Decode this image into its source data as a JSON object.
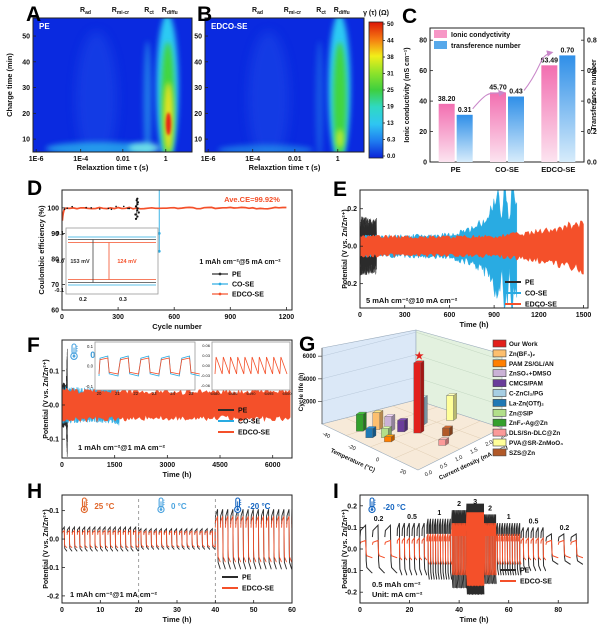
{
  "colors": {
    "pe": "#2b2b2b",
    "co_se": "#29abe2",
    "edco_se": "#f4502a",
    "arrow": "#c987c9",
    "heat_bg": "#0a2ae0",
    "pink_bar": "#f797c6",
    "blue_bar": "#57a8ea"
  },
  "panels": {
    "A": {
      "letter": "A"
    },
    "B": {
      "letter": "B"
    },
    "C": {
      "letter": "C"
    },
    "D": {
      "letter": "D"
    },
    "E": {
      "letter": "E"
    },
    "F": {
      "letter": "F"
    },
    "G": {
      "letter": "G"
    },
    "H": {
      "letter": "H"
    },
    "I": {
      "letter": "I"
    }
  },
  "chart_data": [
    {
      "id": "A",
      "type": "heatmap",
      "title": "PE",
      "profile": "strong",
      "xlabel": "Relaxztion time τ (s)",
      "ylabel": "Charge time (min)",
      "yticks": [
        10,
        20,
        30,
        40,
        50
      ],
      "ylim": [
        5,
        57
      ],
      "xticks": [
        {
          "label": "1E-6",
          "f": 0.02
        },
        {
          "label": "1E-4",
          "f": 0.3
        },
        {
          "label": "0.01",
          "f": 0.565
        },
        {
          "label": "1",
          "f": 0.835
        }
      ],
      "process_labels": [
        {
          "base": "R",
          "sub": "ad",
          "f": 0.33
        },
        {
          "base": "R",
          "sub": "mi-cr",
          "f": 0.55
        },
        {
          "base": "R",
          "sub": "ct",
          "f": 0.73
        },
        {
          "base": "R",
          "sub": "diffu",
          "f": 0.86
        }
      ]
    },
    {
      "id": "B",
      "type": "heatmap",
      "title": "EDCO-SE",
      "profile": "mild",
      "xlabel": "Relaxztion time τ (s)",
      "yticks": [
        10,
        20,
        30,
        40,
        50
      ],
      "ylim": [
        5,
        57
      ],
      "xticks": [
        {
          "label": "1E-6",
          "f": 0.02
        },
        {
          "label": "1E-4",
          "f": 0.3
        },
        {
          "label": "0.01",
          "f": 0.565
        },
        {
          "label": "1",
          "f": 0.835
        }
      ],
      "process_labels": [
        {
          "base": "R",
          "sub": "ad",
          "f": 0.33
        },
        {
          "base": "R",
          "sub": "mi-cr",
          "f": 0.55
        },
        {
          "base": "R",
          "sub": "ct",
          "f": 0.73
        },
        {
          "base": "R",
          "sub": "diffu",
          "f": 0.86
        }
      ],
      "colorbar": {
        "title": "γ (τ) (Ω)",
        "ticks": [
          "50",
          "44",
          "38",
          "31",
          "25",
          "19",
          "13",
          "6.3",
          "0.0"
        ]
      }
    },
    {
      "id": "C",
      "type": "grouped_bar",
      "categories": [
        "PE",
        "CO-SE",
        "EDCO-SE"
      ],
      "ylabel_left": "Ionic conductivity (mS cm⁻¹)",
      "ylabel_right": "Transference number",
      "yticks_left": [
        0,
        20,
        40,
        60,
        80
      ],
      "ylim_left": [
        0,
        88
      ],
      "yticks_right": [
        "0.0",
        "0.2",
        "0.4",
        "0.6",
        "0.8"
      ],
      "ylim_right": [
        0,
        0.88
      ],
      "series": [
        {
          "name": "Ionic condyctivity",
          "axis": "left",
          "values": [
            38.2,
            45.7,
            63.49
          ],
          "labels": [
            "38.20",
            "45.70",
            "63.49"
          ]
        },
        {
          "name": "transference number",
          "axis": "right",
          "values": [
            0.31,
            0.43,
            0.7
          ],
          "labels": [
            "0.31",
            "0.43",
            "0.70"
          ]
        }
      ]
    },
    {
      "id": "D",
      "type": "coulombic",
      "ylabel": "Coulombic efficiency (%)",
      "xlabel": "Cycle number",
      "yticks": [
        60,
        70,
        80,
        90,
        100
      ],
      "ylim": [
        60,
        107
      ],
      "xticks": [
        0,
        300,
        600,
        900,
        1200
      ],
      "xlim": [
        0,
        1230
      ],
      "annotation": "Ave.CE=99.92%",
      "average_ce_percent": 99.92,
      "condition": "1 mAh cm⁻²@5 mA cm⁻²",
      "legend": [
        {
          "label": "PE",
          "color": "pe"
        },
        {
          "label": "CO-SE",
          "color": "co_se"
        },
        {
          "label": "EDCO-SE",
          "color": "edco_se"
        }
      ],
      "pe_fail_cycle": 400,
      "co_se_fail_cycle": 520,
      "edco_se_cycles": 1200,
      "inset": {
        "xticks": [
          "0.2",
          "0.3"
        ],
        "yticks": [
          "0.1",
          "0.0",
          "-0.1"
        ],
        "pe_overpotential_label": "153 mV",
        "edco_overpotential_label": "124 mV"
      }
    },
    {
      "id": "E",
      "type": "envelope",
      "ylabel": "Potential (V vs. Zn/Zn²⁺)",
      "xlabel": "Time (h)",
      "yticks": [
        "0.2",
        "0.0",
        "-0.2"
      ],
      "ylim": [
        -0.33,
        0.3
      ],
      "xticks": [
        0,
        300,
        600,
        900,
        1200,
        1500
      ],
      "xlim": [
        0,
        1530
      ],
      "condition": "5 mAh cm⁻²@10 mA cm⁻²",
      "legend": [
        {
          "label": "PE",
          "color": "pe"
        },
        {
          "label": "CO-SE",
          "color": "co_se"
        },
        {
          "label": "EDCO-SE",
          "color": "edco_se"
        }
      ],
      "series": [
        {
          "name": "PE",
          "color": "pe",
          "envelope": [
            [
              0,
              0.03
            ],
            [
              5,
              0.13
            ],
            [
              100,
              0.12
            ],
            [
              110,
              0.13
            ],
            [
              112,
              0.02
            ]
          ]
        },
        {
          "name": "CO-SE",
          "color": "co_se",
          "envelope": [
            [
              0,
              0.05
            ],
            [
              300,
              0.052
            ],
            [
              600,
              0.06
            ],
            [
              750,
              0.09
            ],
            [
              850,
              0.14
            ],
            [
              900,
              0.22
            ],
            [
              930,
              0.28
            ],
            [
              950,
              0.12
            ],
            [
              970,
              0.3
            ],
            [
              990,
              0.26
            ],
            [
              1000,
              0.1
            ],
            [
              1020,
              0.3
            ],
            [
              1040,
              0.22
            ],
            [
              1052,
              0.28
            ]
          ]
        },
        {
          "name": "EDCO-SE",
          "color": "edco_se",
          "envelope": [
            [
              0,
              0.05
            ],
            [
              600,
              0.048
            ],
            [
              900,
              0.052
            ],
            [
              1100,
              0.065
            ],
            [
              1300,
              0.09
            ],
            [
              1500,
              0.13
            ]
          ]
        }
      ]
    },
    {
      "id": "F",
      "type": "envelope",
      "temp_label": "0 °C",
      "ylabel": "Potential (V vs. Zn/Zn²⁺)",
      "xlabel": "Time (h)",
      "yticks": [
        "0.1",
        "0.0",
        "-0.1"
      ],
      "ylim": [
        -0.155,
        0.19
      ],
      "xticks": [
        0,
        1500,
        3000,
        4500,
        6000
      ],
      "xlim": [
        0,
        6550
      ],
      "condition": "1 mAh cm⁻²@1 mA cm⁻²",
      "legend": [
        {
          "label": "PE",
          "color": "pe"
        },
        {
          "label": "CO-SE",
          "color": "co_se"
        },
        {
          "label": "EDCO-SE",
          "color": "edco_se"
        }
      ],
      "series": [
        {
          "name": "PE",
          "color": "pe",
          "envelope": [
            [
              0,
              0.04
            ],
            [
              30,
              0.055
            ],
            [
              120,
              0.05
            ],
            [
              150,
              0.14
            ],
            [
              158,
              0.05
            ]
          ]
        },
        {
          "name": "CO-SE",
          "color": "co_se",
          "envelope": [
            [
              0,
              0.045
            ],
            [
              800,
              0.042
            ],
            [
              1500,
              0.045
            ],
            [
              1630,
              0.05
            ]
          ]
        },
        {
          "name": "EDCO-SE",
          "color": "edco_se",
          "envelope": [
            [
              0,
              0.042
            ],
            [
              3000,
              0.037
            ],
            [
              6500,
              0.04
            ]
          ]
        }
      ],
      "insets": [
        {
          "xticks": [
            20,
            21,
            22,
            23,
            24,
            25
          ],
          "yticks": [
            "0.1",
            "0.0",
            "-0.1"
          ]
        },
        {
          "xticks": [
            6480,
            6485,
            6490,
            6495,
            6500
          ],
          "yticks": [
            "0.06",
            "0.03",
            "0.00",
            "-0.03",
            "-0.06"
          ]
        }
      ]
    },
    {
      "id": "G",
      "type": "bar3d",
      "zlabel": "Cycle life (h)",
      "xlabel3d": "Temperature (°C)",
      "ylabel3d": "Current density (mA cm⁻²)",
      "zticks": [
        2000,
        4000,
        6000
      ],
      "temp_ticks": [
        "-40",
        "-20",
        "0",
        "20"
      ],
      "cd_ticks": [
        "0.0",
        "0.5",
        "1.0",
        "1.5",
        "2.0",
        "2.5"
      ],
      "entries": [
        {
          "label": "Our Work",
          "color": "#e2201c",
          "star": true,
          "a": 0.45,
          "b": 0.48,
          "cycle_life_h": 6200
        },
        {
          "label": "Zn(BF₄)₂",
          "color": "#fdbf6f",
          "a": 0.7,
          "b": 0.28,
          "cycle_life_h": 1500
        },
        {
          "label": "PAM ZS/GL/AN",
          "color": "#ff7f00",
          "a": 0.48,
          "b": 0.18,
          "cycle_life_h": 450
        },
        {
          "label": "ZnSO₄+DMSO",
          "color": "#cab2d6",
          "a": 0.62,
          "b": 0.33,
          "cycle_life_h": 1300
        },
        {
          "label": "CMCS/PAM",
          "color": "#6a3d9a",
          "a": 0.55,
          "b": 0.4,
          "cycle_life_h": 1000
        },
        {
          "label": "C-ZnCl₂/PG",
          "color": "#a6cee3",
          "a": 0.55,
          "b": 0.62,
          "cycle_life_h": 2400
        },
        {
          "label": "La-Zn(OTf)₂",
          "color": "#1f78b4",
          "a": 0.62,
          "b": 0.12,
          "cycle_life_h": 800
        },
        {
          "label": "Zn@SIP",
          "color": "#b2df8a",
          "a": 0.55,
          "b": 0.22,
          "cycle_life_h": 800
        },
        {
          "label": "ZnF₂-Ag@Zn",
          "color": "#33a02c",
          "a": 0.75,
          "b": 0.15,
          "cycle_life_h": 1500
        },
        {
          "label": "DLS/Sn-DLC@Zn",
          "color": "#fb9a99",
          "a": 0.15,
          "b": 0.45,
          "cycle_life_h": 500
        },
        {
          "label": "PVA@SR-ZnMoO₄",
          "color": "#ffff99",
          "a": 0.45,
          "b": 0.85,
          "cycle_life_h": 2200
        },
        {
          "label": "SZS@Zn",
          "color": "#b15928",
          "a": 0.25,
          "b": 0.6,
          "cycle_life_h": 700
        }
      ]
    },
    {
      "id": "H",
      "type": "pulse",
      "ylabel": "Potential (V vs. Zn/Zn²⁺)",
      "xlabel": "Time (h)",
      "yticks": [
        "0.1",
        "0.0",
        "-0.1",
        "-0.2"
      ],
      "ylim": [
        -0.225,
        0.155
      ],
      "xticks": [
        0,
        10,
        20,
        30,
        40,
        50,
        60
      ],
      "xlim": [
        0,
        60
      ],
      "condition": "1 mAh cm⁻²@1 mA cm⁻²",
      "period_h": 1.33,
      "legend": [
        {
          "label": "PE",
          "color": "pe"
        },
        {
          "label": "EDCO-SE",
          "color": "edco_se"
        }
      ],
      "segments": [
        {
          "temp_label": "25 °C",
          "color": "#e0662a",
          "t0": 0,
          "t1": 20,
          "amp_pe": 0.042,
          "amp_edco": 0.03
        },
        {
          "temp_label": "0 °C",
          "color": "#4aa3df",
          "t0": 20,
          "t1": 40,
          "amp_pe": 0.036,
          "amp_edco": 0.028
        },
        {
          "temp_label": "-20 °C",
          "color": "#1565c0",
          "t0": 40,
          "t1": 60,
          "amp_pe": 0.105,
          "amp_edco": 0.08
        }
      ]
    },
    {
      "id": "I",
      "type": "rate",
      "temp_label": "-20 °C",
      "ylabel": "Potential (V vs. Zn/Zn²⁺)",
      "xlabel": "Time (h)",
      "yticks": [
        "0.2",
        "0.1",
        "0.0",
        "-0.1",
        "-0.2"
      ],
      "ylim": [
        -0.25,
        0.25
      ],
      "xticks": [
        0,
        20,
        40,
        60,
        80
      ],
      "xlim": [
        0,
        92
      ],
      "capacity_label": "0.5 mAh cm⁻²",
      "unit_label": "Unit: mA cm⁻²",
      "legend": [
        {
          "label": "PE",
          "color": "pe"
        },
        {
          "label": "EDCO-SE",
          "color": "edco_se"
        }
      ],
      "steps": [
        {
          "rate": "0.2",
          "t0": 0,
          "t1": 15,
          "half_h": 2.5,
          "amp_pe": 0.11,
          "amp_edco": 0.04
        },
        {
          "rate": "0.5",
          "t0": 15,
          "t1": 27,
          "half_h": 1.0,
          "amp_pe": 0.12,
          "amp_edco": 0.05
        },
        {
          "rate": "1",
          "t0": 27,
          "t1": 37,
          "half_h": 0.5,
          "amp_pe": 0.14,
          "amp_edco": 0.07
        },
        {
          "rate": "2",
          "t0": 37,
          "t1": 43,
          "half_h": 0.25,
          "amp_pe": 0.18,
          "amp_edco": 0.12
        },
        {
          "rate": "3",
          "t0": 43,
          "t1": 50,
          "half_h": 0.167,
          "amp_pe": 0.21,
          "amp_edco": 0.17
        },
        {
          "rate": "2",
          "t0": 50,
          "t1": 55,
          "half_h": 0.25,
          "amp_pe": 0.16,
          "amp_edco": 0.12
        },
        {
          "rate": "1",
          "t0": 55,
          "t1": 65,
          "half_h": 0.5,
          "amp_pe": 0.12,
          "amp_edco": 0.07
        },
        {
          "rate": "0.5",
          "t0": 65,
          "t1": 75,
          "half_h": 1.0,
          "amp_pe": 0.1,
          "amp_edco": 0.05
        },
        {
          "rate": "0.2",
          "t0": 75,
          "t1": 90,
          "half_h": 2.5,
          "amp_pe": 0.07,
          "amp_edco": 0.04
        }
      ]
    }
  ]
}
